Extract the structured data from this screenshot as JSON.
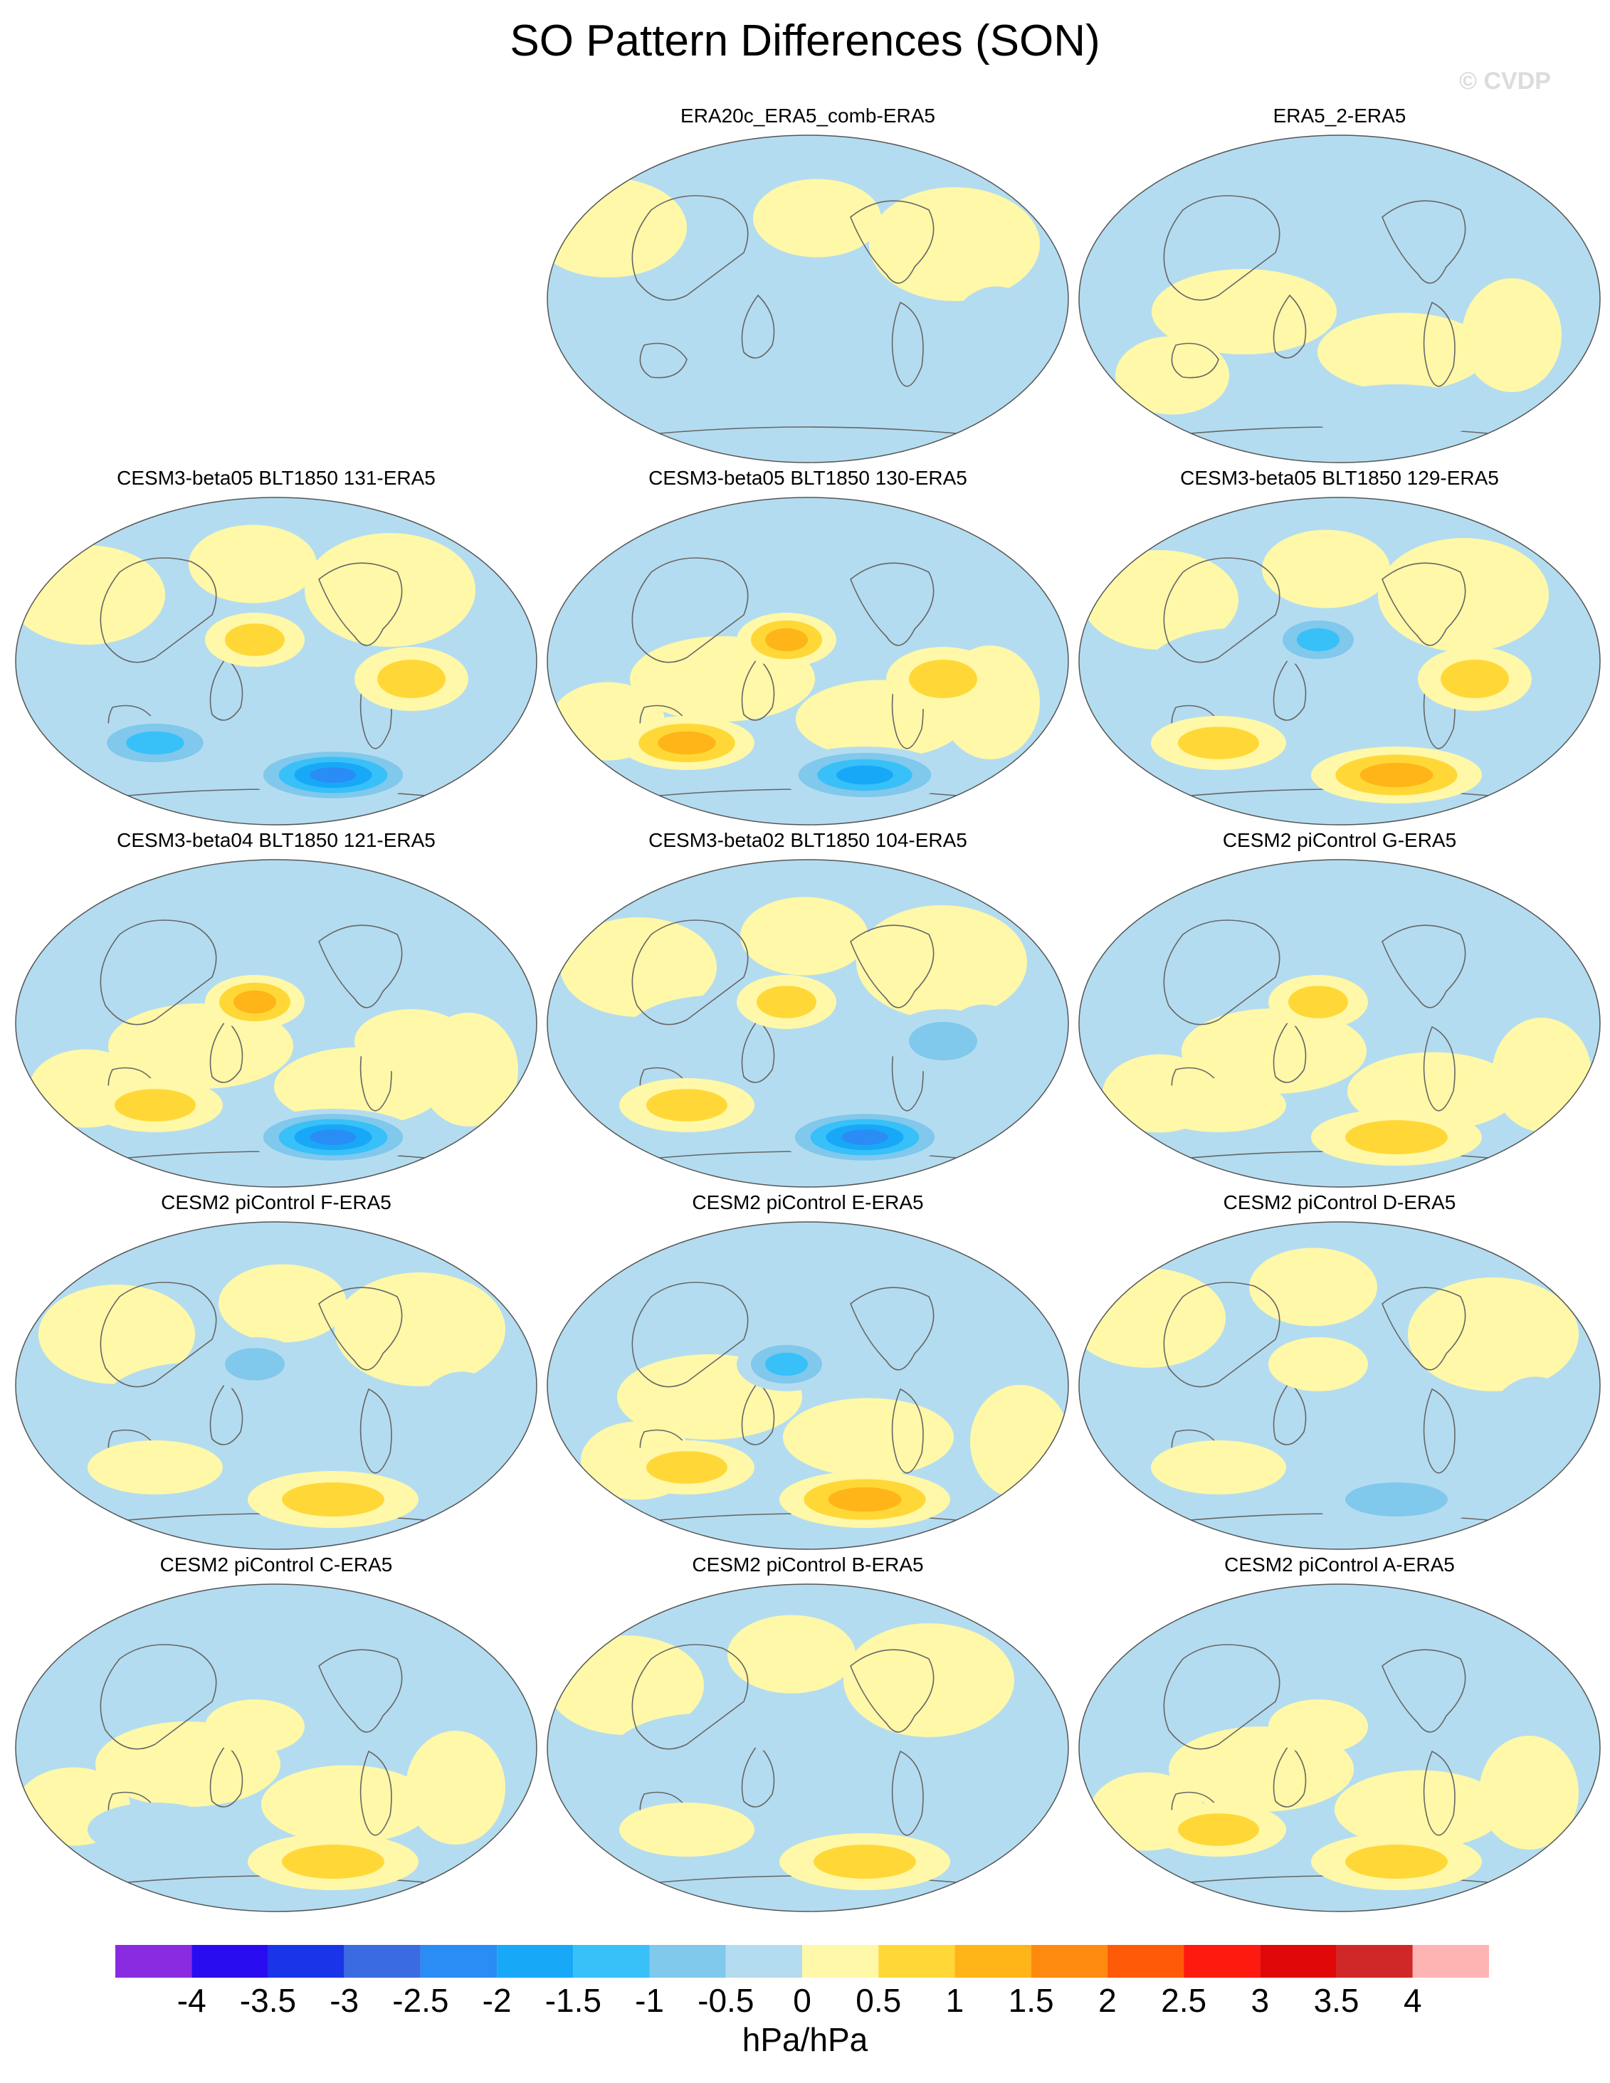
{
  "title": "SO Pattern Differences (SON)",
  "watermark": "© CVDP",
  "panels": [
    {
      "label": "ERA20c_ERA5_comb-ERA5",
      "row": 0,
      "col": 1,
      "anomalies": []
    },
    {
      "label": "ERA5_2-ERA5",
      "row": 0,
      "col": 2,
      "anomalies": [
        {
          "sign": "neg",
          "level": 1
        }
      ]
    },
    {
      "label": "CESM3-beta05 BLT1850 131-ERA5",
      "row": 1,
      "col": 0,
      "anomalies": [
        {
          "sign": "neg",
          "level": 5
        },
        {
          "sign": "pos",
          "level": 2
        },
        {
          "sign": "neg",
          "level": 3
        },
        {
          "sign": "pos",
          "level": 2
        }
      ]
    },
    {
      "label": "CESM3-beta05 BLT1850 130-ERA5",
      "row": 1,
      "col": 1,
      "anomalies": [
        {
          "sign": "neg",
          "level": 4
        },
        {
          "sign": "pos",
          "level": 3
        },
        {
          "sign": "pos",
          "level": 3
        },
        {
          "sign": "pos",
          "level": 2
        }
      ]
    },
    {
      "label": "CESM3-beta05 BLT1850 129-ERA5",
      "row": 1,
      "col": 2,
      "anomalies": [
        {
          "sign": "pos",
          "level": 3
        },
        {
          "sign": "neg",
          "level": 3
        },
        {
          "sign": "pos",
          "level": 2
        },
        {
          "sign": "pos",
          "level": 2
        }
      ]
    },
    {
      "label": "CESM3-beta04 BLT1850 121-ERA5",
      "row": 2,
      "col": 0,
      "anomalies": [
        {
          "sign": "neg",
          "level": 5
        },
        {
          "sign": "pos",
          "level": 3
        },
        {
          "sign": "pos",
          "level": 2
        },
        {
          "sign": "pos",
          "level": 1
        }
      ]
    },
    {
      "label": "CESM3-beta02 BLT1850 104-ERA5",
      "row": 2,
      "col": 1,
      "anomalies": [
        {
          "sign": "neg",
          "level": 5
        },
        {
          "sign": "pos",
          "level": 2
        },
        {
          "sign": "pos",
          "level": 2
        },
        {
          "sign": "neg",
          "level": 2
        }
      ]
    },
    {
      "label": "CESM2 piControl G-ERA5",
      "row": 2,
      "col": 2,
      "anomalies": [
        {
          "sign": "pos",
          "level": 2
        },
        {
          "sign": "pos",
          "level": 2
        },
        {
          "sign": "pos",
          "level": 1
        }
      ]
    },
    {
      "label": "CESM2 piControl F-ERA5",
      "row": 3,
      "col": 0,
      "anomalies": [
        {
          "sign": "pos",
          "level": 2
        },
        {
          "sign": "neg",
          "level": 2
        },
        {
          "sign": "pos",
          "level": 1
        }
      ]
    },
    {
      "label": "CESM2 piControl E-ERA5",
      "row": 3,
      "col": 1,
      "anomalies": [
        {
          "sign": "pos",
          "level": 3
        },
        {
          "sign": "neg",
          "level": 3
        },
        {
          "sign": "pos",
          "level": 2
        }
      ]
    },
    {
      "label": "CESM2 piControl D-ERA5",
      "row": 3,
      "col": 2,
      "anomalies": [
        {
          "sign": "neg",
          "level": 2
        },
        {
          "sign": "pos",
          "level": 1
        },
        {
          "sign": "pos",
          "level": 1
        }
      ]
    },
    {
      "label": "CESM2 piControl C-ERA5",
      "row": 4,
      "col": 0,
      "anomalies": [
        {
          "sign": "pos",
          "level": 2
        },
        {
          "sign": "pos",
          "level": 1
        },
        {
          "sign": "neg",
          "level": 1
        }
      ]
    },
    {
      "label": "CESM2 piControl B-ERA5",
      "row": 4,
      "col": 1,
      "anomalies": [
        {
          "sign": "pos",
          "level": 2
        },
        {
          "sign": "neg",
          "level": 1
        },
        {
          "sign": "pos",
          "level": 1
        }
      ]
    },
    {
      "label": "CESM2 piControl A-ERA5",
      "row": 4,
      "col": 2,
      "anomalies": [
        {
          "sign": "pos",
          "level": 2
        },
        {
          "sign": "pos",
          "level": 1
        },
        {
          "sign": "pos",
          "level": 2
        }
      ]
    }
  ],
  "colorbar": {
    "colors": [
      "#8a2be2",
      "#2a0cf0",
      "#1a35e8",
      "#3a6be0",
      "#2a8cf5",
      "#18a8f8",
      "#38c0f8",
      "#80c8ec",
      "#b4dcf0",
      "#fff8a8",
      "#ffd838",
      "#ffb418",
      "#ff8a10",
      "#ff5a08",
      "#ff1a10",
      "#e00808",
      "#d02828",
      "#ffb4b4"
    ],
    "ticks": [
      "-4",
      "-3.5",
      "-3",
      "-2.5",
      "-2",
      "-1.5",
      "-1",
      "-0.5",
      "0",
      "0.5",
      "1",
      "1.5",
      "2",
      "2.5",
      "3",
      "3.5",
      "4"
    ],
    "units": "hPa/hPa"
  }
}
